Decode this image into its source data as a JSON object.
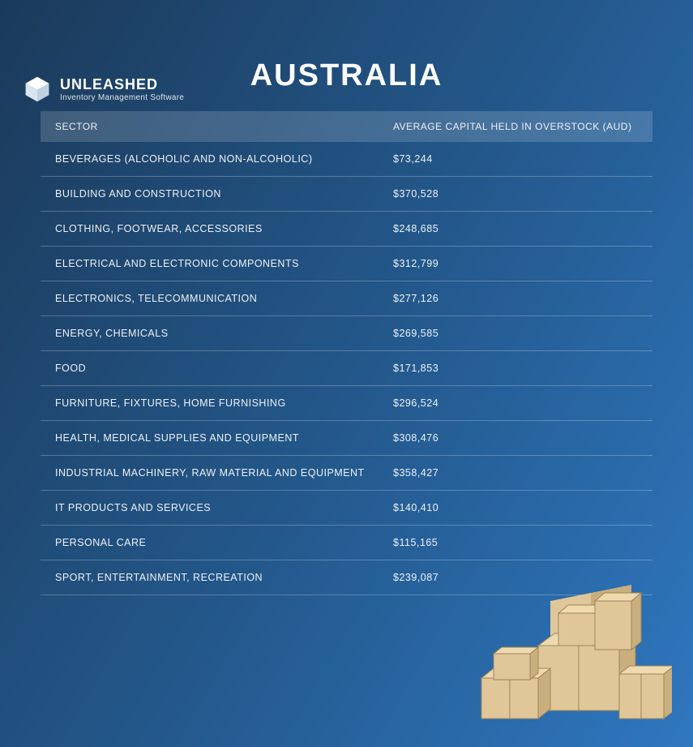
{
  "brand": {
    "name": "UNLEASHED",
    "tagline": "Inventory Management Software"
  },
  "title": "AUSTRALIA",
  "table": {
    "columns": {
      "sector": "SECTOR",
      "value": "AVERAGE CAPITAL HELD IN OVERSTOCK (AUD)"
    },
    "rows": [
      {
        "sector": "BEVERAGES (ALCOHOLIC AND NON-ALCOHOLIC)",
        "value": "$73,244"
      },
      {
        "sector": "BUILDING AND CONSTRUCTION",
        "value": "$370,528"
      },
      {
        "sector": "CLOTHING, FOOTWEAR, ACCESSORIES",
        "value": "$248,685"
      },
      {
        "sector": "ELECTRICAL AND ELECTRONIC COMPONENTS",
        "value": "$312,799"
      },
      {
        "sector": "ELECTRONICS, TELECOMMUNICATION",
        "value": "$277,126"
      },
      {
        "sector": "ENERGY, CHEMICALS",
        "value": "$269,585"
      },
      {
        "sector": "FOOD",
        "value": "$171,853"
      },
      {
        "sector": "FURNITURE, FIXTURES, HOME FURNISHING",
        "value": "$296,524"
      },
      {
        "sector": "HEALTH, MEDICAL SUPPLIES AND EQUIPMENT",
        "value": "$308,476"
      },
      {
        "sector": "INDUSTRIAL MACHINERY, RAW MATERIAL AND EQUIPMENT",
        "value": "$358,427"
      },
      {
        "sector": "IT PRODUCTS AND SERVICES",
        "value": "$140,410"
      },
      {
        "sector": "PERSONAL CARE",
        "value": "$115,165"
      },
      {
        "sector": "SPORT, ENTERTAINMENT, RECREATION",
        "value": "$239,087"
      }
    ]
  },
  "style": {
    "background_gradient": [
      "#1b3a5a",
      "#245a8f",
      "#2f77bf"
    ],
    "header_bg": "rgba(255,255,255,0.16)",
    "row_border": "rgba(255,255,255,0.25)",
    "text_color": "#ffffff",
    "title_fontsize": 38,
    "header_fontsize": 12,
    "cell_fontsize": 12.5,
    "box_colors": {
      "face": "#e0c79a",
      "top": "#efdab0",
      "side": "#c9ae7e",
      "line": "#9e8558"
    }
  }
}
